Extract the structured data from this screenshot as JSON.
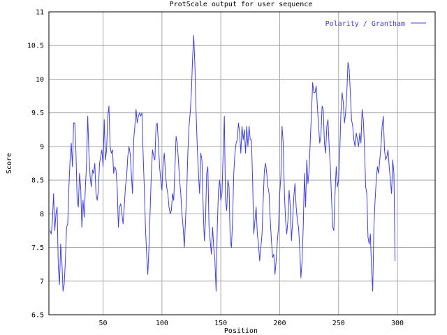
{
  "chart_data": {
    "type": "line",
    "title": "ProtScale output for user sequence",
    "xlabel": "Position",
    "ylabel": "Score",
    "xlim": [
      4,
      332
    ],
    "ylim": [
      6.5,
      11
    ],
    "xticks": [
      50,
      100,
      150,
      200,
      250,
      300
    ],
    "yticks": [
      6.5,
      7,
      7.5,
      8,
      8.5,
      9,
      9.5,
      10,
      10.5,
      11
    ],
    "grid": true,
    "legend_position": "top-right",
    "series": [
      {
        "name": "Polarity / Grantham",
        "color": "#4040e0",
        "x_start": 5,
        "values": [
          7.75,
          7.7,
          7.9,
          8.3,
          7.75,
          8.0,
          8.1,
          7.2,
          6.95,
          7.55,
          7.3,
          6.85,
          6.95,
          7.3,
          7.8,
          7.85,
          8.4,
          8.8,
          9.05,
          8.7,
          9.35,
          9.35,
          8.9,
          8.2,
          8.1,
          8.6,
          8.4,
          7.8,
          8.2,
          7.95,
          8.4,
          8.75,
          9.45,
          8.9,
          8.55,
          8.4,
          8.65,
          8.6,
          8.75,
          8.3,
          8.2,
          8.35,
          8.75,
          8.85,
          8.95,
          8.7,
          9.4,
          8.8,
          8.95,
          9.45,
          9.6,
          9.0,
          8.9,
          8.95,
          8.6,
          8.7,
          8.65,
          8.4,
          7.8,
          8.1,
          8.15,
          8.0,
          7.85,
          8.1,
          8.4,
          8.55,
          8.85,
          9.0,
          8.9,
          8.6,
          8.3,
          9.1,
          9.3,
          9.55,
          9.35,
          9.45,
          9.5,
          9.45,
          9.5,
          8.9,
          8.4,
          7.8,
          7.4,
          7.1,
          7.5,
          8.05,
          8.6,
          8.95,
          8.85,
          8.8,
          9.3,
          9.35,
          9.05,
          8.7,
          8.5,
          8.35,
          8.75,
          8.9,
          8.6,
          8.4,
          8.3,
          8.1,
          8.0,
          8.05,
          8.3,
          8.2,
          8.65,
          9.15,
          9.05,
          8.8,
          8.5,
          8.3,
          8.0,
          7.8,
          7.5,
          7.9,
          8.3,
          8.9,
          9.3,
          9.5,
          9.8,
          10.3,
          10.65,
          10.2,
          9.5,
          9.0,
          8.6,
          8.3,
          8.9,
          8.8,
          8.1,
          7.6,
          7.9,
          8.6,
          8.7,
          7.8,
          7.6,
          7.4,
          7.8,
          7.5,
          7.3,
          6.85,
          7.8,
          8.35,
          8.5,
          8.2,
          8.3,
          8.9,
          9.45,
          8.2,
          8.05,
          8.5,
          8.4,
          7.6,
          7.5,
          7.9,
          8.6,
          8.9,
          9.05,
          9.1,
          9.35,
          9.2,
          8.9,
          9.3,
          9.1,
          9.25,
          8.9,
          9.3,
          9.0,
          9.3,
          9.1,
          9.1,
          8.5,
          7.7,
          7.9,
          8.1,
          7.7,
          7.55,
          7.3,
          7.5,
          7.7,
          8.2,
          8.65,
          8.75,
          8.6,
          8.4,
          8.3,
          7.9,
          7.6,
          7.35,
          7.4,
          7.1,
          7.3,
          7.6,
          7.8,
          8.3,
          8.55,
          9.3,
          9.05,
          8.3,
          7.9,
          7.7,
          7.9,
          8.35,
          8.1,
          7.6,
          7.9,
          8.25,
          8.45,
          8.1,
          7.9,
          7.8,
          7.5,
          7.05,
          7.3,
          7.8,
          8.6,
          8.1,
          8.8,
          8.45,
          8.65,
          9.1,
          9.5,
          9.95,
          9.8,
          9.8,
          9.9,
          9.6,
          9.3,
          9.05,
          9.15,
          9.6,
          9.55,
          9.05,
          8.9,
          9.3,
          9.4,
          9.0,
          8.7,
          8.25,
          7.8,
          7.75,
          8.3,
          8.7,
          8.4,
          8.5,
          8.9,
          9.5,
          9.8,
          9.65,
          9.35,
          9.5,
          9.8,
          10.25,
          10.15,
          9.8,
          9.4,
          9.3,
          9.1,
          9.0,
          9.2,
          9.1,
          9.0,
          9.2,
          9.05,
          9.55,
          9.4,
          9.0,
          8.4,
          8.3,
          7.65,
          7.55,
          7.7,
          7.2,
          6.85,
          7.8,
          8.2,
          8.5,
          8.7,
          8.6,
          8.8,
          9.0,
          9.3,
          9.45,
          8.95,
          8.8,
          8.85,
          8.95,
          8.7,
          8.5,
          8.3,
          8.8,
          8.6,
          7.3
        ]
      }
    ]
  }
}
